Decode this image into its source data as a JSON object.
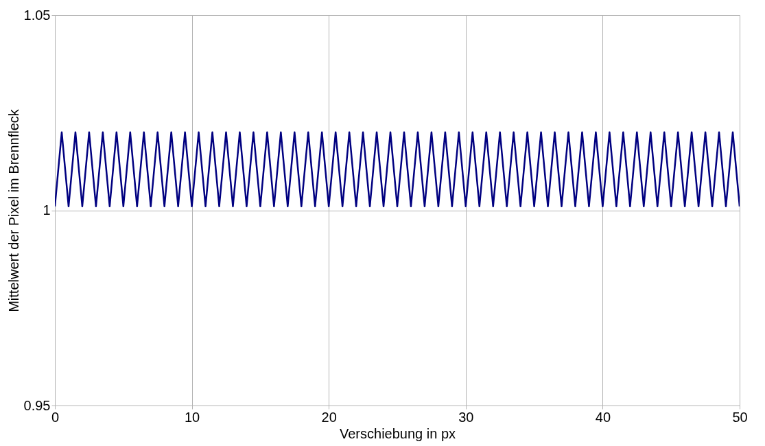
{
  "chart_data": {
    "type": "line",
    "xlabel": "Verschiebung in px",
    "ylabel": "Mittelwert der Pixel im Brennfleck",
    "x": [
      0,
      0.5,
      1,
      1.5,
      2,
      2.5,
      3,
      3.5,
      4,
      4.5,
      5,
      5.5,
      6,
      6.5,
      7,
      7.5,
      8,
      8.5,
      9,
      9.5,
      10,
      10.5,
      11,
      11.5,
      12,
      12.5,
      13,
      13.5,
      14,
      14.5,
      15,
      15.5,
      16,
      16.5,
      17,
      17.5,
      18,
      18.5,
      19,
      19.5,
      20,
      20.5,
      21,
      21.5,
      22,
      22.5,
      23,
      23.5,
      24,
      24.5,
      25,
      25.5,
      26,
      26.5,
      27,
      27.5,
      28,
      28.5,
      29,
      29.5,
      30,
      30.5,
      31,
      31.5,
      32,
      32.5,
      33,
      33.5,
      34,
      34.5,
      35,
      35.5,
      36,
      36.5,
      37,
      37.5,
      38,
      38.5,
      39,
      39.5,
      40,
      40.5,
      41,
      41.5,
      42,
      42.5,
      43,
      43.5,
      44,
      44.5,
      45,
      45.5,
      46,
      46.5,
      47,
      47.5,
      48,
      48.5,
      49,
      49.5,
      50
    ],
    "series": [
      {
        "color": "#000080",
        "values": [
          1.001,
          1.02,
          1.001,
          1.02,
          1.001,
          1.02,
          1.001,
          1.02,
          1.001,
          1.02,
          1.001,
          1.02,
          1.001,
          1.02,
          1.001,
          1.02,
          1.001,
          1.02,
          1.001,
          1.02,
          1.001,
          1.02,
          1.001,
          1.02,
          1.001,
          1.02,
          1.001,
          1.02,
          1.001,
          1.02,
          1.001,
          1.02,
          1.001,
          1.02,
          1.001,
          1.02,
          1.001,
          1.02,
          1.001,
          1.02,
          1.001,
          1.02,
          1.001,
          1.02,
          1.001,
          1.02,
          1.001,
          1.02,
          1.001,
          1.02,
          1.001,
          1.02,
          1.001,
          1.02,
          1.001,
          1.02,
          1.001,
          1.02,
          1.001,
          1.02,
          1.001,
          1.02,
          1.001,
          1.02,
          1.001,
          1.02,
          1.001,
          1.02,
          1.001,
          1.02,
          1.001,
          1.02,
          1.001,
          1.02,
          1.001,
          1.02,
          1.001,
          1.02,
          1.001,
          1.02,
          1.001,
          1.02,
          1.001,
          1.02,
          1.001,
          1.02,
          1.001,
          1.02,
          1.001,
          1.02,
          1.001,
          1.02,
          1.001,
          1.02,
          1.001,
          1.02,
          1.001,
          1.02,
          1.001,
          1.02,
          1.001
        ]
      }
    ],
    "xlim": [
      0,
      50
    ],
    "xticks": [
      0,
      10,
      20,
      30,
      40,
      50
    ],
    "ylim": [
      0.95,
      1.05
    ],
    "yticks": [
      0.95,
      1,
      1.05
    ],
    "grid": true,
    "marker": "none",
    "line_style": "solid"
  }
}
